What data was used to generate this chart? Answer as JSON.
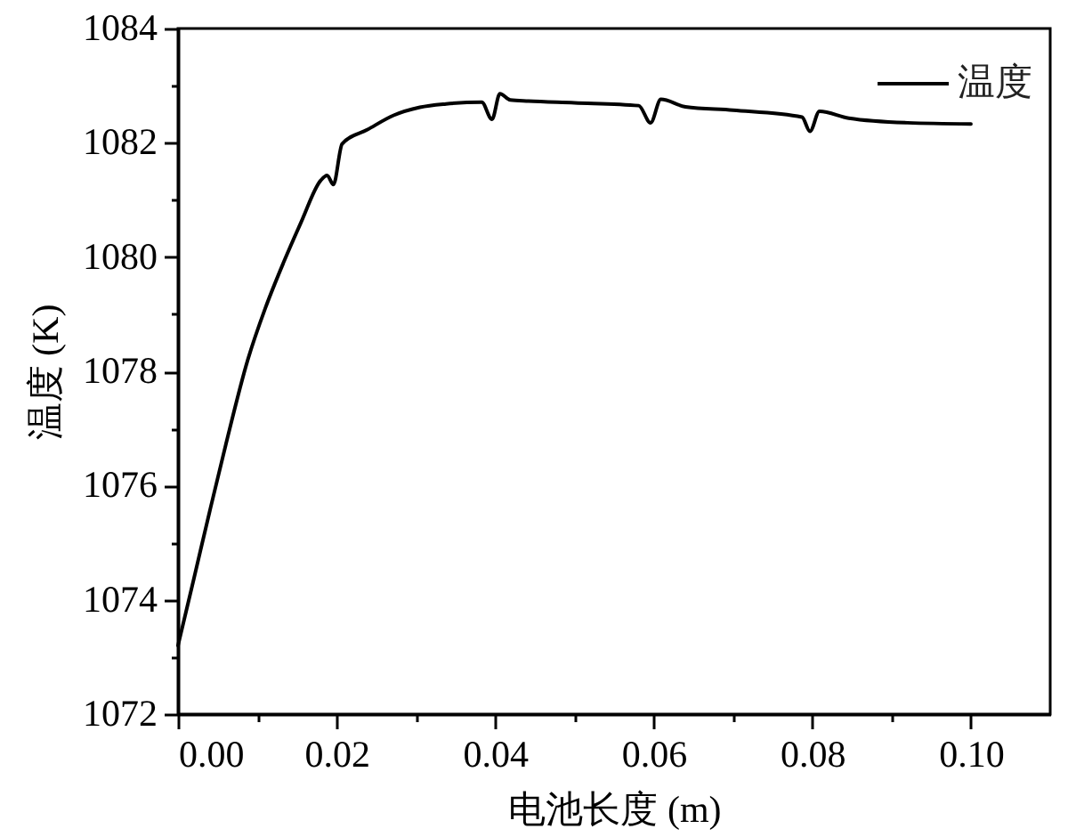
{
  "chart_data": {
    "type": "line",
    "xlabel": "电池长度 (m)",
    "ylabel": "温度 (K)",
    "x": [
      0,
      0.002,
      0.004,
      0.006,
      0.0088,
      0.011,
      0.0133,
      0.0155,
      0.018,
      0.0188,
      0.0196,
      0.0207,
      0.0239,
      0.0272,
      0.0305,
      0.0338,
      0.0383,
      0.0396,
      0.0406,
      0.0419,
      0.0442,
      0.05,
      0.0581,
      0.0596,
      0.0609,
      0.064,
      0.07,
      0.0787,
      0.0797,
      0.0809,
      0.0846,
      0.092,
      0.1
    ],
    "series": [
      {
        "name": "温度",
        "color": "#000000",
        "values": [
          1073.2,
          1074.37,
          1075.55,
          1076.7,
          1078.2,
          1079.1,
          1079.9,
          1080.6,
          1081.34,
          1081.43,
          1081.27,
          1081.98,
          1082.23,
          1082.48,
          1082.62,
          1082.68,
          1082.71,
          1082.41,
          1082.86,
          1082.75,
          1082.73,
          1082.7,
          1082.65,
          1082.35,
          1082.76,
          1082.63,
          1082.57,
          1082.45,
          1082.2,
          1082.55,
          1082.43,
          1082.35,
          1082.33
        ]
      }
    ],
    "xlim": [
      0,
      0.11
    ],
    "xticks": [
      {
        "value": 0,
        "label": "0.00"
      },
      {
        "value": 0.01,
        "label": null
      },
      {
        "value": 0.02,
        "label": "0.02"
      },
      {
        "value": 0.03,
        "label": null
      },
      {
        "value": 0.04,
        "label": "0.04"
      },
      {
        "value": 0.05,
        "label": null
      },
      {
        "value": 0.06,
        "label": "0.06"
      },
      {
        "value": 0.07,
        "label": null
      },
      {
        "value": 0.08,
        "label": "0.08"
      },
      {
        "value": 0.09,
        "label": null
      },
      {
        "value": 0.1,
        "label": "0.10"
      }
    ],
    "ylim": [
      1072,
      1084
    ],
    "yticks": [
      1072,
      {
        "value": 1073,
        "label": null
      },
      1074,
      {
        "value": 1075,
        "label": null
      },
      1076,
      {
        "value": 1077,
        "label": null
      },
      1078,
      {
        "value": 1079,
        "label": null
      },
      1080,
      {
        "value": 1081,
        "label": null
      },
      1082,
      {
        "value": 1083,
        "label": null
      },
      1084
    ],
    "grid": false,
    "legend": "top right",
    "line_style": "solid"
  }
}
